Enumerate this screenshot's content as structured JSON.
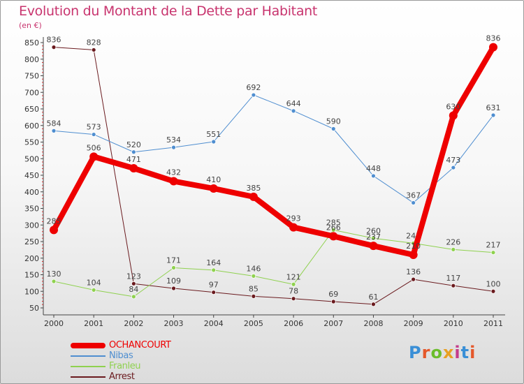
{
  "title": "Evolution du Montant de la Dette par Habitant",
  "unit": "(en €)",
  "brand": "Proxiti",
  "brand_colors": [
    "#3a8fd6",
    "#e5582b",
    "#6bbd2c",
    "#e8a023",
    "#c43c8b",
    "#3a8fd6",
    "#e5582b"
  ],
  "chart_data": {
    "type": "line",
    "x": [
      "2000",
      "2001",
      "2002",
      "2003",
      "2004",
      "2005",
      "2006",
      "2007",
      "2008",
      "2009",
      "2010",
      "2011"
    ],
    "ylim": [
      50,
      850
    ],
    "yticks": [
      50,
      100,
      150,
      200,
      250,
      300,
      350,
      400,
      450,
      500,
      550,
      600,
      650,
      700,
      750,
      800,
      850
    ],
    "grid": false,
    "legend_position": "bottom-left",
    "series": [
      {
        "name": "Arrest",
        "color": "#6a1a1e",
        "width": 1,
        "values": [
          836,
          828,
          123,
          109,
          97,
          85,
          78,
          69,
          61,
          136,
          117,
          100
        ],
        "labels": [
          "836",
          "828",
          "123",
          "109",
          "97",
          "85",
          "78",
          "69",
          "61",
          "136",
          "117",
          "100"
        ],
        "label_offsets": [
          "above",
          "above",
          "above",
          "above",
          "above",
          "above",
          "above",
          "above",
          "above",
          "above",
          "above",
          "above"
        ]
      },
      {
        "name": "Franleu",
        "color": "#8fd14f",
        "width": 1,
        "values": [
          130,
          104,
          84,
          171,
          164,
          146,
          121,
          285,
          260,
          245,
          226,
          217
        ],
        "labels": [
          "130",
          "104",
          "84",
          "171",
          "164",
          "146",
          "121",
          "285",
          "260",
          "245",
          "226",
          "217"
        ],
        "label_offsets": [
          "above",
          "above",
          "above",
          "above",
          "above",
          "above",
          "above",
          "above",
          "above",
          "above",
          "above",
          "above"
        ]
      },
      {
        "name": "Nibas",
        "color": "#4f8ed0",
        "width": 1,
        "values": [
          584,
          573,
          520,
          534,
          551,
          692,
          644,
          590,
          448,
          367,
          473,
          631
        ],
        "labels": [
          "584",
          "573",
          "520",
          "534",
          "551",
          "692",
          "644",
          "590",
          "448",
          "367",
          "473",
          "631"
        ],
        "label_offsets": [
          "above",
          "above",
          "above",
          "above",
          "above",
          "above",
          "above",
          "above",
          "above",
          "above",
          "above",
          "above"
        ]
      },
      {
        "name": "OCHANCOURT",
        "color": "#ee0000",
        "width": 8,
        "values": [
          285,
          506,
          471,
          432,
          410,
          385,
          293,
          266,
          237,
          210,
          630,
          836
        ],
        "labels": [
          "285",
          "506",
          "471",
          "432",
          "410",
          "385",
          "293",
          "266",
          "237",
          "210",
          "630",
          "836"
        ],
        "label_offsets": [
          "above",
          "above",
          "above",
          "above",
          "above",
          "above",
          "above",
          "above",
          "above",
          "above",
          "above",
          "above"
        ]
      }
    ]
  },
  "legend": [
    {
      "label": "OCHANCOURT",
      "color": "#ee0000",
      "thickness": 8
    },
    {
      "label": "Nibas",
      "color": "#4f8ed0",
      "thickness": 2
    },
    {
      "label": "Franleu",
      "color": "#8fd14f",
      "thickness": 2
    },
    {
      "label": "Arrest",
      "color": "#6a1a1e",
      "thickness": 2
    }
  ]
}
